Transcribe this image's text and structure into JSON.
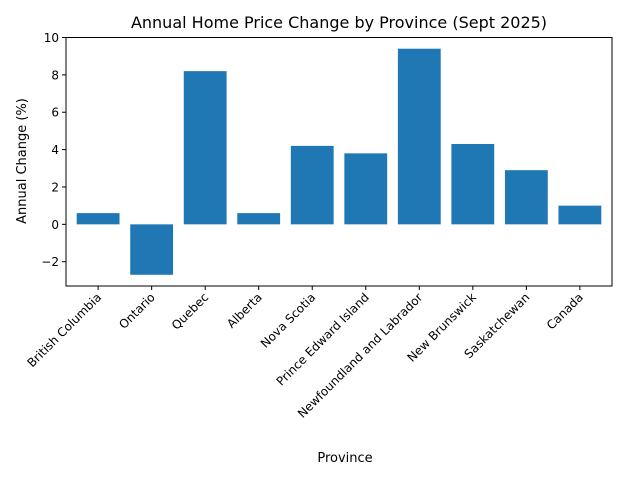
{
  "chart_data": {
    "type": "bar",
    "title": "Annual Home Price Change by Province (Sept 2025)",
    "xlabel": "Province",
    "ylabel": "Annual Change (%)",
    "categories": [
      "British Columbia",
      "Ontario",
      "Quebec",
      "Alberta",
      "Nova Scotia",
      "Prince Edward Island",
      "Newfoundland and Labrador",
      "New Brunswick",
      "Saskatchewan",
      "Canada"
    ],
    "values": [
      0.6,
      -2.7,
      8.2,
      0.6,
      4.2,
      3.8,
      9.4,
      4.3,
      2.9,
      1.0
    ],
    "ylim": [
      -3.3,
      10
    ],
    "yticks": [
      -2,
      0,
      2,
      4,
      6,
      8,
      10
    ],
    "ytick_labels": [
      "−2",
      "0",
      "2",
      "4",
      "6",
      "8",
      "10"
    ],
    "grid": false,
    "bar_color": "#1f77b4"
  }
}
